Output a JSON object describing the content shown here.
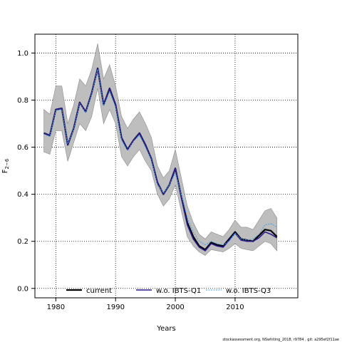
{
  "chart_data": {
    "type": "line",
    "xlabel": "Years",
    "ylabel": "F",
    "ylabel_sub": "2−6",
    "xlim": [
      1976.5,
      2020.5
    ],
    "ylim": [
      -0.04,
      1.08
    ],
    "x_ticks": [
      1980,
      1990,
      2000,
      2010
    ],
    "x_tick_labels": [
      "1980",
      "1990",
      "2000",
      "2010"
    ],
    "y_ticks": [
      0.0,
      0.2,
      0.4,
      0.6,
      0.8,
      1.0
    ],
    "y_tick_labels": [
      "0.0",
      "0.2",
      "0.4",
      "0.6",
      "0.8",
      "1.0"
    ],
    "grid": true,
    "legend_position": "bottom",
    "x": [
      1978,
      1979,
      1980,
      1981,
      1982,
      1983,
      1984,
      1985,
      1986,
      1987,
      1988,
      1989,
      1990,
      1991,
      1992,
      1993,
      1994,
      1995,
      1996,
      1997,
      1998,
      1999,
      2000,
      2001,
      2002,
      2003,
      2004,
      2005,
      2006,
      2007,
      2008,
      2009,
      2010,
      2011,
      2012,
      2013,
      2014,
      2015,
      2016,
      2017
    ],
    "band": {
      "upper": [
        0.76,
        0.74,
        0.86,
        0.86,
        0.7,
        0.78,
        0.89,
        0.86,
        0.93,
        1.04,
        0.89,
        0.95,
        0.86,
        0.73,
        0.68,
        0.72,
        0.75,
        0.7,
        0.64,
        0.52,
        0.47,
        0.5,
        0.59,
        0.47,
        0.35,
        0.28,
        0.23,
        0.21,
        0.24,
        0.23,
        0.22,
        0.25,
        0.29,
        0.26,
        0.26,
        0.25,
        0.29,
        0.33,
        0.34,
        0.3
      ],
      "lower": [
        0.58,
        0.57,
        0.67,
        0.67,
        0.54,
        0.62,
        0.7,
        0.67,
        0.73,
        0.85,
        0.7,
        0.76,
        0.7,
        0.56,
        0.52,
        0.56,
        0.59,
        0.54,
        0.5,
        0.4,
        0.35,
        0.38,
        0.44,
        0.33,
        0.22,
        0.18,
        0.155,
        0.14,
        0.165,
        0.16,
        0.155,
        0.17,
        0.19,
        0.17,
        0.165,
        0.16,
        0.18,
        0.2,
        0.19,
        0.16
      ],
      "color": "#bebebe"
    },
    "series": [
      {
        "name": "current",
        "color": "#000000",
        "values": [
          0.66,
          0.65,
          0.76,
          0.765,
          0.61,
          0.68,
          0.79,
          0.75,
          0.83,
          0.935,
          0.78,
          0.85,
          0.78,
          0.64,
          0.59,
          0.63,
          0.66,
          0.61,
          0.55,
          0.45,
          0.4,
          0.44,
          0.51,
          0.39,
          0.28,
          0.22,
          0.18,
          0.165,
          0.195,
          0.185,
          0.18,
          0.21,
          0.24,
          0.21,
          0.205,
          0.2,
          0.225,
          0.25,
          0.245,
          0.22
        ]
      },
      {
        "name": "w.o. IBTS-Q1",
        "color": "#2c1a8f",
        "values": [
          0.66,
          0.65,
          0.76,
          0.765,
          0.61,
          0.68,
          0.79,
          0.75,
          0.83,
          0.935,
          0.78,
          0.85,
          0.78,
          0.64,
          0.59,
          0.63,
          0.66,
          0.61,
          0.55,
          0.45,
          0.4,
          0.44,
          0.51,
          0.385,
          0.27,
          0.21,
          0.175,
          0.16,
          0.19,
          0.18,
          0.175,
          0.205,
          0.235,
          0.205,
          0.2,
          0.2,
          0.215,
          0.24,
          0.23,
          0.215
        ]
      },
      {
        "name": "w.o. IBTS-Q3",
        "color": "#3aa0e8",
        "values": [
          0.655,
          0.645,
          0.755,
          0.76,
          0.615,
          0.675,
          0.785,
          0.745,
          0.825,
          0.93,
          0.775,
          0.835,
          0.77,
          0.63,
          0.585,
          0.625,
          0.65,
          0.6,
          0.545,
          0.44,
          0.405,
          0.44,
          0.49,
          0.4,
          0.3,
          0.24,
          0.2,
          0.185,
          0.2,
          0.19,
          0.185,
          0.2,
          0.235,
          0.21,
          0.205,
          0.21,
          0.23,
          0.27,
          0.275,
          0.26
        ]
      }
    ]
  },
  "footnote": "stockassessment.org, NSwhiting_2018, r9784 , git: a295ef2f11ae"
}
